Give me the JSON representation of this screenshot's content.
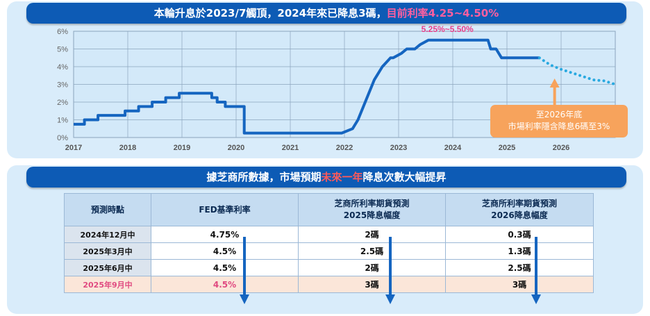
{
  "banner_top": {
    "prefix": "本輪升息於2023/7觸頂，2024年來已降息3碼，",
    "highlight": "目前利率4.25~4.50%"
  },
  "banner_bottom": {
    "prefix": "據芝商所數據，市場預期",
    "highlight": "未來一年",
    "suffix": "降息次數大幅提昇"
  },
  "colors": {
    "banner": "#0d5bb5",
    "line": "#1565c0",
    "forecast": "#29a9e0",
    "callout": "#f7a35c",
    "highlight_pink": "#ff5fa0",
    "highlight_row": "#fbe6d9"
  },
  "chart_data": {
    "type": "line",
    "ylim": [
      0,
      6
    ],
    "xlim": [
      2017,
      2027
    ],
    "y_ticks": [
      "0%",
      "1%",
      "2%",
      "3%",
      "4%",
      "5%",
      "6%"
    ],
    "x_ticks": [
      "2017",
      "2018",
      "2019",
      "2020",
      "2021",
      "2022",
      "2023",
      "2024",
      "2025",
      "2026"
    ],
    "grid": true,
    "peak_label": "5.25%~5.50%",
    "callout": [
      "至2026年底",
      "市場利率隱含降息6碼至3%"
    ],
    "series": [
      {
        "style": "solid",
        "x": [
          2017.0,
          2017.2,
          2017.2,
          2017.45,
          2017.45,
          2017.95,
          2017.95,
          2018.2,
          2018.2,
          2018.45,
          2018.45,
          2018.7,
          2018.7,
          2018.95,
          2018.95,
          2019.55,
          2019.55,
          2019.65,
          2019.65,
          2019.8,
          2019.8,
          2020.15,
          2020.15,
          2020.2,
          2021.95,
          2022.15,
          2022.25,
          2022.35,
          2022.45,
          2022.55,
          2022.7,
          2022.85,
          2022.9,
          2023.05,
          2023.15,
          2023.3,
          2023.4,
          2023.55,
          2024.65,
          2024.7,
          2024.8,
          2024.9,
          2025.6
        ],
        "y": [
          0.75,
          0.75,
          1.0,
          1.0,
          1.25,
          1.25,
          1.5,
          1.5,
          1.75,
          1.75,
          2.0,
          2.0,
          2.25,
          2.25,
          2.5,
          2.5,
          2.25,
          2.25,
          2.0,
          2.0,
          1.75,
          1.75,
          0.25,
          0.25,
          0.25,
          0.5,
          1.0,
          1.75,
          2.5,
          3.25,
          4.0,
          4.5,
          4.5,
          4.75,
          5.0,
          5.0,
          5.25,
          5.5,
          5.5,
          5.0,
          5.0,
          4.5,
          4.5
        ]
      },
      {
        "style": "dotted",
        "x": [
          2025.6,
          2025.8,
          2026.0,
          2026.2,
          2026.4,
          2026.6,
          2026.8,
          2027.0
        ],
        "y": [
          4.5,
          4.1,
          3.85,
          3.65,
          3.45,
          3.25,
          3.2,
          3.0
        ]
      }
    ]
  },
  "table": {
    "headers": [
      [
        "預測時點"
      ],
      [
        "FED基準利率"
      ],
      [
        "芝商所利率期貨預測",
        "2025降息幅度"
      ],
      [
        "芝商所利率期貨預測",
        "2026降息幅度"
      ]
    ],
    "rows": [
      [
        "2024年12月中",
        "4.75%",
        "2碼",
        "0.3碼"
      ],
      [
        "2025年3月中",
        "4.5%",
        "2.5碼",
        "1.3碼"
      ],
      [
        "2025年6月中",
        "4.5%",
        "2碼",
        "2.5碼"
      ],
      [
        "2025年9月中",
        "4.5%",
        "3碼",
        "3碼"
      ]
    ]
  }
}
